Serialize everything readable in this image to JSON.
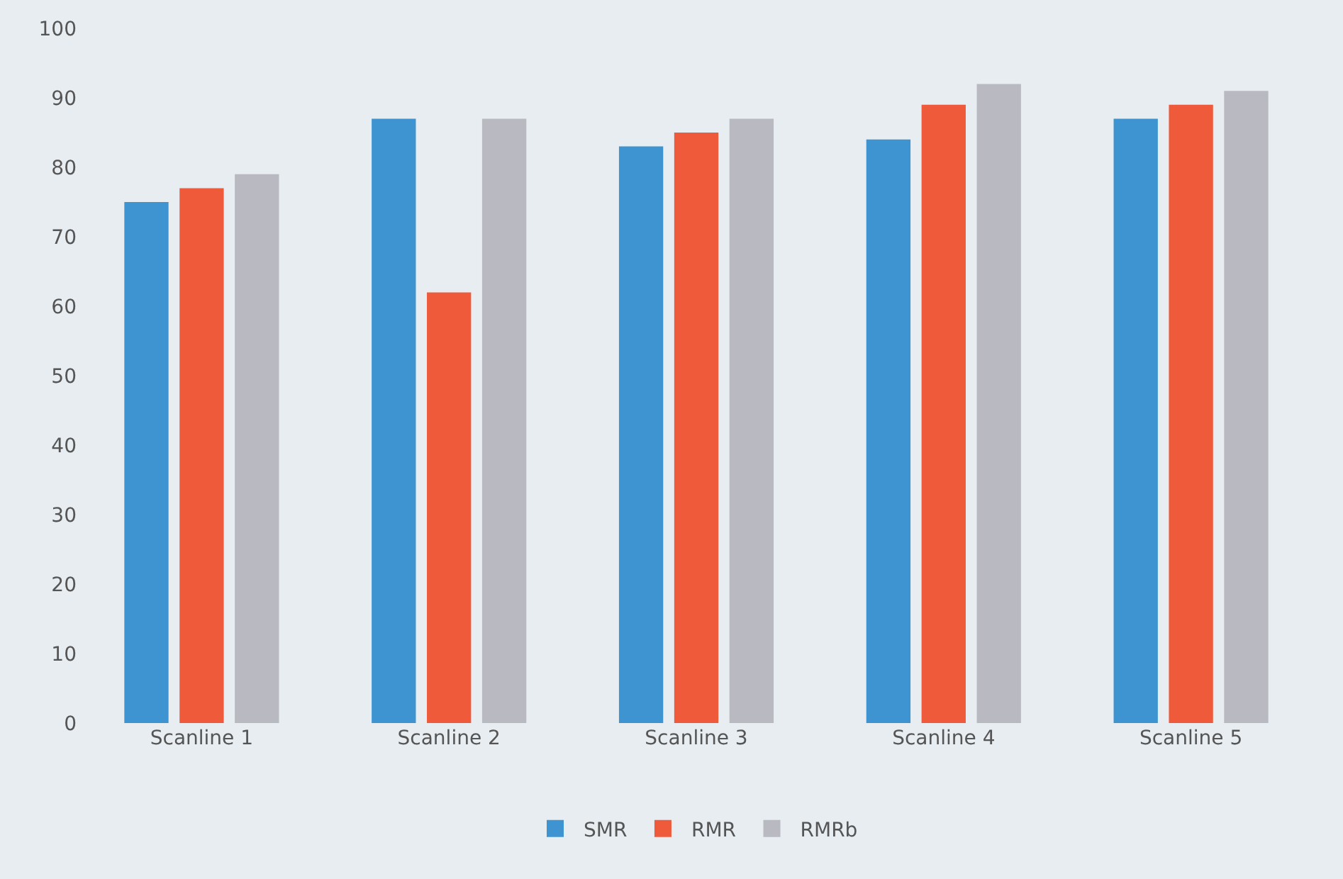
{
  "chart_data": {
    "type": "bar",
    "categories": [
      "Scanline 1",
      "Scanline 2",
      "Scanline 3",
      "Scanline 4",
      "Scanline 5"
    ],
    "series": [
      {
        "name": "SMR",
        "color": "#3d94d0",
        "values": [
          75,
          87,
          83,
          84,
          87
        ]
      },
      {
        "name": "RMR",
        "color": "#ee5a3a",
        "values": [
          77,
          62,
          85,
          89,
          89
        ]
      },
      {
        "name": "RMRb",
        "color": "#b9b9c1",
        "values": [
          79,
          87,
          87,
          92,
          91
        ]
      }
    ],
    "ylim": [
      0,
      100
    ],
    "yticks": [
      0,
      10,
      20,
      30,
      40,
      50,
      60,
      70,
      80,
      90,
      100
    ],
    "grid": false,
    "legend": "bottom"
  }
}
